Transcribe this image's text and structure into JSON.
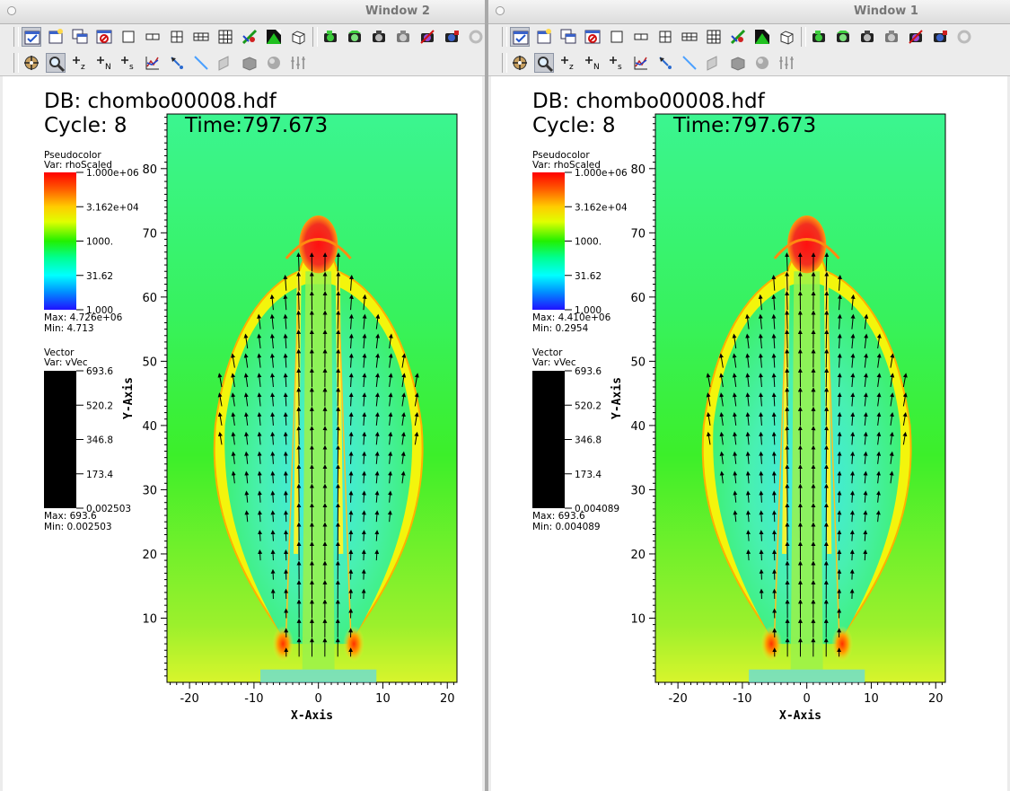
{
  "windows": [
    {
      "key": "win2",
      "title": "Window 2",
      "db_label": "DB: chombo00008.hdf",
      "cycle_label": "Cycle: 8",
      "time_label": "Time:797.673",
      "pseudocolor": {
        "title": "Pseudocolor",
        "var": "Var: rhoScaled",
        "ticks": [
          "1.000e+06",
          "3.162e+04",
          "1000.",
          "31.62",
          "1.000"
        ],
        "max": "Max: 4.726e+06",
        "min": "Min:  4.713"
      },
      "vector": {
        "title": "Vector",
        "var": "Var: vVec",
        "ticks": [
          "693.6",
          "520.2",
          "346.8",
          "173.4",
          "0.002503"
        ],
        "max": "Max:  693.6",
        "min": "Min:  0.002503"
      }
    },
    {
      "key": "win1",
      "title": "Window 1",
      "db_label": "DB: chombo00008.hdf",
      "cycle_label": "Cycle: 8",
      "time_label": "Time:797.673",
      "pseudocolor": {
        "title": "Pseudocolor",
        "var": "Var: rhoScaled",
        "ticks": [
          "1.000e+06",
          "3.162e+04",
          "1000.",
          "31.62",
          "1.000"
        ],
        "max": "Max: 4.410e+06",
        "min": "Min:  0.2954"
      },
      "vector": {
        "title": "Vector",
        "var": "Var: vVec",
        "ticks": [
          "693.6",
          "520.2",
          "346.8",
          "173.4",
          "0.004089"
        ],
        "max": "Max:  693.6",
        "min": "Min:  0.004089"
      }
    }
  ],
  "axes": {
    "x_label": "X-Axis",
    "y_label": "Y-Axis",
    "x_ticks": [
      "-20",
      "-10",
      "0",
      "10",
      "20"
    ],
    "y_ticks": [
      "10",
      "20",
      "30",
      "40",
      "50",
      "60",
      "70",
      "80"
    ]
  },
  "toolbar_row1": [
    "active-window-icon",
    "new-window-icon",
    "clone-window-icon",
    "delete-window-icon",
    "layout-1x1-icon",
    "layout-1x2-icon",
    "layout-2x2-icon",
    "layout-2x3-icon",
    "layout-3x3-icon",
    "lock-view-icon",
    "lock-time-icon",
    "reset-view-icon",
    "camera-green-icon",
    "camera-green-2-icon",
    "camera-icon",
    "camera-gray-icon",
    "camera-disabled-icon",
    "camera-blue-icon",
    "spin-icon"
  ],
  "toolbar_row2": [
    "navigate-icon",
    "zoom-icon",
    "zone-pick-icon",
    "node-pick-icon",
    "spreadsheet-pick-icon",
    "curve-icon",
    "pick-icon",
    "line-icon",
    "plane-icon",
    "box-icon",
    "sphere-icon",
    "axis-restrict-icon"
  ],
  "colors": {
    "background": "#37f57f",
    "outer_field": "#3ff12f",
    "cavity": "#3cf0d8",
    "shell": "#f6f60e",
    "hot": "#e8201a"
  }
}
